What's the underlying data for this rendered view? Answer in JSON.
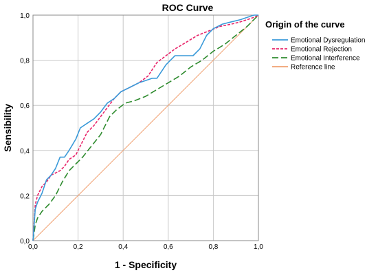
{
  "chart_data": {
    "type": "line",
    "title": "ROC Curve",
    "xlabel": "1 - Specificity",
    "ylabel": "Sensibility",
    "xlim": [
      0,
      1
    ],
    "ylim": [
      0,
      1
    ],
    "x_ticks": [
      "0,0",
      "0,2",
      "0,4",
      "0,6",
      "0,8",
      "1,0"
    ],
    "y_ticks": [
      "0,0",
      "0,2",
      "0,4",
      "0,6",
      "0,8",
      "1,0"
    ],
    "grid": true,
    "legend": {
      "title": "Origin of the curve",
      "position": "right"
    },
    "series": [
      {
        "name": "Emotional Dysregulation",
        "color": "#3a9ad9",
        "style": "solid",
        "x": [
          0,
          0.01,
          0.02,
          0.04,
          0.06,
          0.08,
          0.1,
          0.12,
          0.14,
          0.16,
          0.19,
          0.21,
          0.24,
          0.27,
          0.3,
          0.33,
          0.36,
          0.39,
          0.43,
          0.47,
          0.5,
          0.53,
          0.55,
          0.59,
          0.63,
          0.68,
          0.71,
          0.74,
          0.77,
          0.8,
          0.84,
          0.88,
          0.92,
          0.95,
          0.98,
          1.0
        ],
        "y": [
          0,
          0.14,
          0.17,
          0.21,
          0.27,
          0.29,
          0.32,
          0.37,
          0.37,
          0.4,
          0.45,
          0.5,
          0.52,
          0.54,
          0.57,
          0.61,
          0.63,
          0.66,
          0.68,
          0.7,
          0.71,
          0.72,
          0.72,
          0.78,
          0.82,
          0.82,
          0.82,
          0.85,
          0.91,
          0.94,
          0.96,
          0.97,
          0.98,
          0.99,
          1.0,
          1.0
        ]
      },
      {
        "name": "Emotional Rejection",
        "color": "#e8256a",
        "style": "dotted",
        "x": [
          0,
          0.01,
          0.02,
          0.04,
          0.06,
          0.08,
          0.1,
          0.12,
          0.14,
          0.16,
          0.19,
          0.21,
          0.24,
          0.27,
          0.3,
          0.33,
          0.36,
          0.39,
          0.43,
          0.47,
          0.51,
          0.55,
          0.59,
          0.63,
          0.68,
          0.73,
          0.78,
          0.83,
          0.88,
          0.92,
          0.95,
          0.98,
          1.0
        ],
        "y": [
          0,
          0.16,
          0.2,
          0.24,
          0.26,
          0.29,
          0.3,
          0.31,
          0.33,
          0.36,
          0.38,
          0.42,
          0.48,
          0.51,
          0.55,
          0.59,
          0.63,
          0.66,
          0.68,
          0.7,
          0.73,
          0.79,
          0.82,
          0.85,
          0.88,
          0.91,
          0.93,
          0.95,
          0.96,
          0.97,
          0.98,
          0.99,
          1.0
        ]
      },
      {
        "name": "Emotional Interference",
        "color": "#2e8b2e",
        "style": "dashed",
        "x": [
          0,
          0.01,
          0.02,
          0.04,
          0.07,
          0.1,
          0.13,
          0.16,
          0.19,
          0.22,
          0.26,
          0.3,
          0.34,
          0.37,
          0.41,
          0.45,
          0.5,
          0.55,
          0.6,
          0.65,
          0.7,
          0.75,
          0.8,
          0.85,
          0.9,
          0.95,
          1.0
        ],
        "y": [
          0,
          0.07,
          0.1,
          0.13,
          0.16,
          0.2,
          0.26,
          0.31,
          0.34,
          0.37,
          0.42,
          0.47,
          0.55,
          0.58,
          0.61,
          0.62,
          0.64,
          0.67,
          0.7,
          0.73,
          0.77,
          0.8,
          0.84,
          0.87,
          0.91,
          0.95,
          1.0
        ]
      },
      {
        "name": "Reference line",
        "color": "#f0a070",
        "style": "solid",
        "x": [
          0,
          1
        ],
        "y": [
          0,
          1
        ]
      }
    ]
  }
}
